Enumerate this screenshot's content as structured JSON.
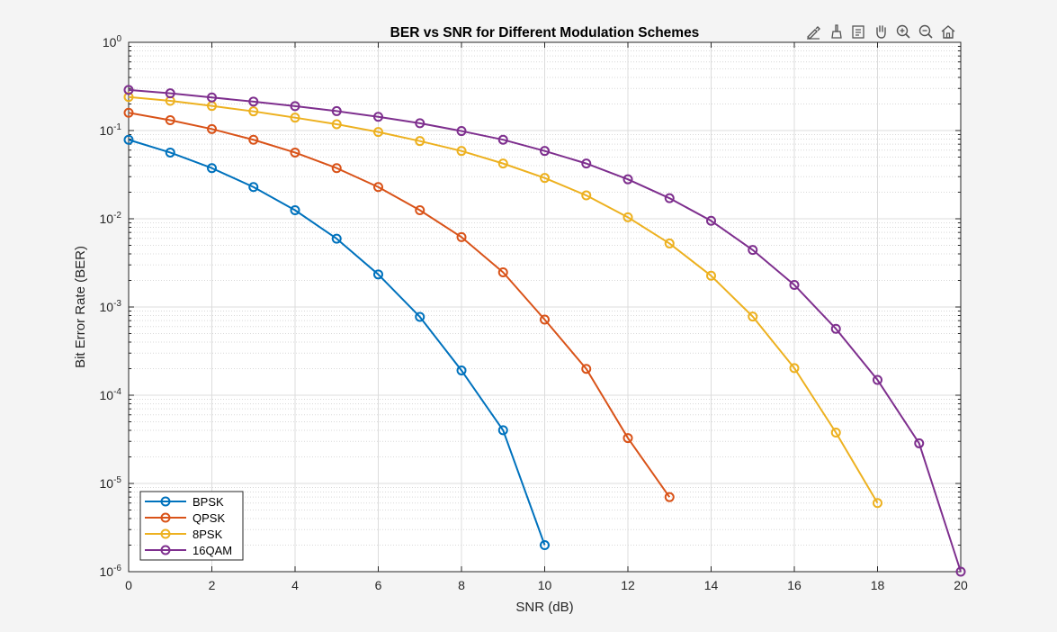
{
  "toolbar": [
    {
      "name": "edit-data-tips-icon"
    },
    {
      "name": "brush-icon"
    },
    {
      "name": "data-cursor-icon"
    },
    {
      "name": "pan-hand-icon"
    },
    {
      "name": "zoom-in-icon"
    },
    {
      "name": "zoom-out-icon"
    },
    {
      "name": "home-restore-icon"
    }
  ],
  "chart_data": {
    "type": "line",
    "title": "BER vs SNR for Different Modulation Schemes",
    "xlabel": "SNR (dB)",
    "ylabel": "Bit Error Rate (BER)",
    "xlim": [
      0,
      20
    ],
    "ylim": [
      1e-06,
      1
    ],
    "yscale": "log",
    "grid": true,
    "minor_grid": true,
    "legend_position": "bottom-left",
    "xticks": [
      "0",
      "2",
      "4",
      "6",
      "8",
      "10",
      "12",
      "14",
      "16",
      "18",
      "20"
    ],
    "yticks": [
      {
        "base": "10",
        "exp": "0"
      },
      {
        "base": "10",
        "exp": "-1"
      },
      {
        "base": "10",
        "exp": "-2"
      },
      {
        "base": "10",
        "exp": "-3"
      },
      {
        "base": "10",
        "exp": "-4"
      },
      {
        "base": "10",
        "exp": "-5"
      },
      {
        "base": "10",
        "exp": "-6"
      }
    ],
    "series": [
      {
        "name": "BPSK",
        "color": "#0072BD",
        "x": [
          0,
          1,
          2,
          3,
          4,
          5,
          6,
          7,
          8,
          9,
          10
        ],
        "y": [
          0.0786,
          0.0563,
          0.0375,
          0.0229,
          0.0125,
          0.00595,
          0.00234,
          0.000773,
          0.000191,
          4.01e-05,
          2e-06
        ]
      },
      {
        "name": "QPSK",
        "color": "#D95319",
        "x": [
          0,
          1,
          2,
          3,
          4,
          5,
          6,
          7,
          8,
          9,
          10,
          11,
          12,
          13
        ],
        "y": [
          0.159,
          0.131,
          0.104,
          0.0786,
          0.0563,
          0.0375,
          0.0229,
          0.0125,
          0.0062,
          0.00247,
          0.00072,
          0.000199,
          3.27e-05,
          7e-06
        ]
      },
      {
        "name": "8PSK",
        "color": "#EDB120",
        "x": [
          0,
          1,
          2,
          3,
          4,
          5,
          6,
          7,
          8,
          9,
          10,
          11,
          12,
          13,
          14,
          15,
          16,
          17,
          18
        ],
        "y": [
          0.24,
          0.217,
          0.19,
          0.165,
          0.14,
          0.118,
          0.0962,
          0.076,
          0.0587,
          0.0423,
          0.029,
          0.0184,
          0.0104,
          0.00525,
          0.00226,
          0.000779,
          0.000203,
          3.77e-05,
          6e-06
        ]
      },
      {
        "name": "16QAM",
        "color": "#7E2F8E",
        "x": [
          0,
          1,
          2,
          3,
          4,
          5,
          6,
          7,
          8,
          9,
          10,
          11,
          12,
          13,
          14,
          15,
          16,
          17,
          18,
          19,
          20
        ],
        "y": [
          0.289,
          0.264,
          0.237,
          0.213,
          0.189,
          0.166,
          0.143,
          0.121,
          0.0987,
          0.0787,
          0.0587,
          0.0423,
          0.028,
          0.0171,
          0.00948,
          0.00443,
          0.00178,
          0.000566,
          0.000149,
          2.85e-05,
          1e-06
        ]
      }
    ]
  }
}
